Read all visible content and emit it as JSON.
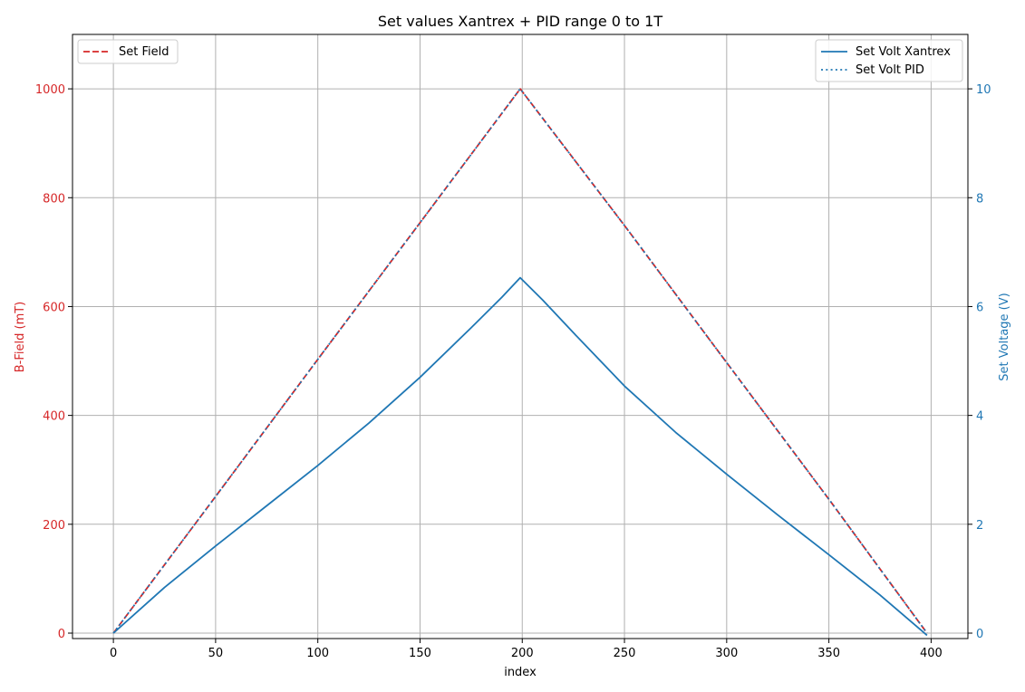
{
  "chart_data": {
    "type": "line",
    "title": "Set values Xantrex + PID range 0 to 1T",
    "xlabel": "index",
    "ylabel_left": "B-Field (mT)",
    "ylabel_right": "Set Voltage (V)",
    "xlim": [
      -20,
      418
    ],
    "ylim_left": [
      -10,
      1100
    ],
    "ylim_right": [
      -0.1,
      11
    ],
    "grid": true,
    "x_ticks": [
      0,
      50,
      100,
      150,
      200,
      250,
      300,
      350,
      400
    ],
    "y_left_ticks": [
      0,
      200,
      400,
      600,
      800,
      1000
    ],
    "y_right_ticks": [
      0,
      2,
      4,
      6,
      8,
      10
    ],
    "colors": {
      "field": "#d62728",
      "volt": "#1f77b4",
      "left_axis": "#d62728",
      "right_axis": "#1f77b4"
    },
    "series": [
      {
        "name": "Set Field",
        "axis": "left",
        "style": "dashed",
        "color": "#d62728",
        "x": [
          0,
          50,
          100,
          150,
          199,
          250,
          300,
          350,
          398
        ],
        "values": [
          0,
          251,
          503,
          754,
          1000,
          749,
          497,
          246,
          0
        ]
      },
      {
        "name": "Set Volt Xantrex",
        "axis": "right",
        "style": "solid",
        "color": "#1f77b4",
        "x": [
          0,
          25,
          50,
          75,
          100,
          125,
          150,
          175,
          190,
          199,
          210,
          225,
          250,
          275,
          300,
          325,
          350,
          375,
          398
        ],
        "values": [
          0,
          0.84,
          1.6,
          2.34,
          3.08,
          3.86,
          4.7,
          5.61,
          6.17,
          6.53,
          6.12,
          5.52,
          4.54,
          3.69,
          2.92,
          2.17,
          1.44,
          0.7,
          -0.04
        ]
      },
      {
        "name": "Set Volt PID",
        "axis": "right",
        "style": "dotted",
        "color": "#1f77b4",
        "x": [
          0,
          50,
          100,
          150,
          199,
          250,
          300,
          350,
          398
        ],
        "values": [
          0,
          2.51,
          5.03,
          7.54,
          10.0,
          7.49,
          4.97,
          2.46,
          0
        ]
      }
    ],
    "legends": [
      {
        "location": "upper left",
        "entries": [
          "Set Field"
        ]
      },
      {
        "location": "upper right",
        "entries": [
          "Set Volt Xantrex",
          "Set Volt PID"
        ]
      }
    ]
  }
}
